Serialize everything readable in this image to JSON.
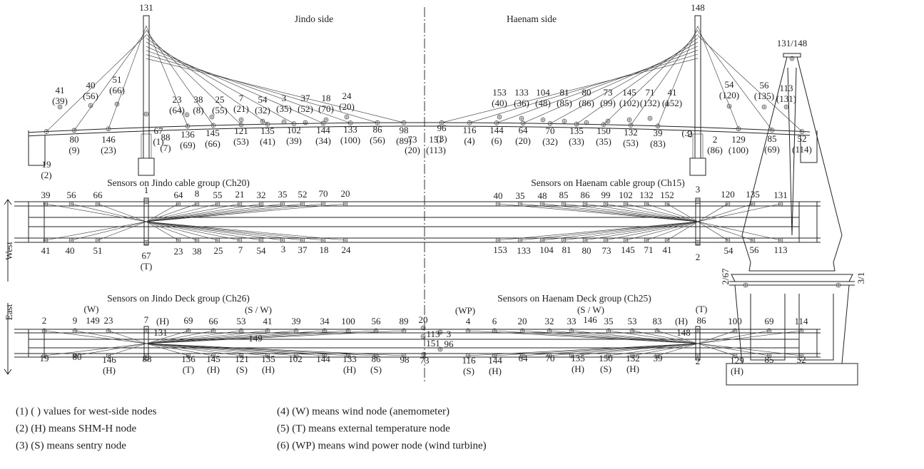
{
  "elevation": {
    "pylons": [
      "131",
      "148"
    ],
    "sides": [
      "Jindo side",
      "Haenam side"
    ],
    "labels": [
      [
        "41",
        "(39)"
      ],
      [
        "40",
        "(56)"
      ],
      [
        "51",
        "(66)"
      ],
      [
        "23",
        "(64)"
      ],
      [
        "38",
        "(8)"
      ],
      [
        "25",
        "(55)"
      ],
      [
        "7",
        "(21)"
      ],
      [
        "54",
        "(32)"
      ],
      [
        "3",
        "(35)"
      ],
      [
        "37",
        "(52)"
      ],
      [
        "18",
        "(70)"
      ],
      [
        "24",
        "(20)"
      ],
      [
        "67",
        "(1)"
      ],
      [
        "73",
        "(20)"
      ],
      [
        "151",
        "(113)"
      ],
      [
        "153",
        "(40)"
      ],
      [
        "133",
        "(36)"
      ],
      [
        "104",
        "(48)"
      ],
      [
        "81",
        "(85)"
      ],
      [
        "80",
        "(86)"
      ],
      [
        "73",
        "(99)"
      ],
      [
        "145",
        "(102)"
      ],
      [
        "71",
        "(132)"
      ],
      [
        "41",
        "(152)"
      ],
      [
        "2"
      ],
      [
        "54",
        "(120)"
      ],
      [
        "56",
        "(135)"
      ],
      [
        "113",
        "(131)"
      ],
      [
        "19",
        "(2)"
      ],
      [
        "80",
        "(9)"
      ],
      [
        "146",
        "(23)"
      ],
      [
        "88",
        "(7)"
      ],
      [
        "136",
        "(69)"
      ],
      [
        "145",
        "(66)"
      ],
      [
        "121",
        "(53)"
      ],
      [
        "135",
        "(41)"
      ],
      [
        "102",
        "(39)"
      ],
      [
        "144",
        "(34)"
      ],
      [
        "133",
        "(100)"
      ],
      [
        "86",
        "(56)"
      ],
      [
        "98",
        "(89)"
      ],
      [
        "96",
        "(3)"
      ],
      [
        "116",
        "(4)"
      ],
      [
        "144",
        "(6)"
      ],
      [
        "64",
        "(20)"
      ],
      [
        "70",
        "(32)"
      ],
      [
        "135",
        "(33)"
      ],
      [
        "150",
        "(35)"
      ],
      [
        "132",
        "(53)"
      ],
      [
        "39",
        "(83)"
      ],
      [
        "(3)"
      ],
      [
        "2",
        "(86)"
      ],
      [
        "129",
        "(100)"
      ],
      [
        "85",
        "(69)"
      ],
      [
        "52",
        "(114)"
      ]
    ]
  },
  "cable_plan": {
    "titles": [
      "Sensors on Jindo cable group (Ch20)",
      "Sensors on Haenam cable group (Ch15)"
    ],
    "labels": [
      [
        "39"
      ],
      [
        "56"
      ],
      [
        "66"
      ],
      [
        "1"
      ],
      [
        "64"
      ],
      [
        "8"
      ],
      [
        "55"
      ],
      [
        "21"
      ],
      [
        "32"
      ],
      [
        "35"
      ],
      [
        "52"
      ],
      [
        "70"
      ],
      [
        "20"
      ],
      [
        "40"
      ],
      [
        "35"
      ],
      [
        "48"
      ],
      [
        "85"
      ],
      [
        "86"
      ],
      [
        "99"
      ],
      [
        "102"
      ],
      [
        "132"
      ],
      [
        "152"
      ],
      [
        "3"
      ],
      [
        "120"
      ],
      [
        "135"
      ],
      [
        "131"
      ],
      [
        "41"
      ],
      [
        "40"
      ],
      [
        "51"
      ],
      [
        "67",
        "(T)"
      ],
      [
        "23"
      ],
      [
        "38"
      ],
      [
        "25"
      ],
      [
        "7"
      ],
      [
        "54"
      ],
      [
        "3"
      ],
      [
        "37"
      ],
      [
        "18"
      ],
      [
        "24"
      ],
      [
        "153"
      ],
      [
        "133"
      ],
      [
        "104"
      ],
      [
        "81"
      ],
      [
        "80"
      ],
      [
        "73"
      ],
      [
        "145"
      ],
      [
        "71"
      ],
      [
        "41"
      ],
      [
        "2"
      ],
      [
        "54"
      ],
      [
        "56"
      ],
      [
        "113"
      ]
    ]
  },
  "deck_plan": {
    "titles": [
      "Sensors on Jindo Deck group (Ch26)",
      "Sensors on Haenam Deck group (Ch25)"
    ],
    "labels": [
      [
        "(W)"
      ],
      [
        "2"
      ],
      [
        "9"
      ],
      [
        "149"
      ],
      [
        "23"
      ],
      [
        "7"
      ],
      [
        "(H)"
      ],
      [
        "131"
      ],
      [
        "69"
      ],
      [
        "66"
      ],
      [
        "53"
      ],
      [
        "(S / W)"
      ],
      [
        "41"
      ],
      [
        "39"
      ],
      [
        "34"
      ],
      [
        "100"
      ],
      [
        "56"
      ],
      [
        "89"
      ],
      [
        "20"
      ],
      [
        "113"
      ],
      [
        "3"
      ],
      [
        "151"
      ],
      [
        "96"
      ],
      [
        "149"
      ],
      [
        "(WP)"
      ],
      [
        "4"
      ],
      [
        "6"
      ],
      [
        "20"
      ],
      [
        "32"
      ],
      [
        "33"
      ],
      [
        "146"
      ],
      [
        "(S / W)"
      ],
      [
        "35"
      ],
      [
        "53"
      ],
      [
        "83"
      ],
      [
        "(H)"
      ],
      [
        "(T)"
      ],
      [
        "86"
      ],
      [
        "148"
      ],
      [
        "100"
      ],
      [
        "69"
      ],
      [
        "114"
      ],
      [
        "19"
      ],
      [
        "80"
      ],
      [
        "146",
        "(H)"
      ],
      [
        "88"
      ],
      [
        "136",
        "(T)"
      ],
      [
        "145",
        "(H)"
      ],
      [
        "121",
        "(S)"
      ],
      [
        "135",
        "(H)"
      ],
      [
        "102"
      ],
      [
        "144"
      ],
      [
        "133",
        "(H)"
      ],
      [
        "86",
        "(S)"
      ],
      [
        "98"
      ],
      [
        "73"
      ],
      [
        "116",
        "(S)"
      ],
      [
        "144",
        "(H)"
      ],
      [
        "64"
      ],
      [
        "70"
      ],
      [
        "135",
        "(H)"
      ],
      [
        "150",
        "(S)"
      ],
      [
        "132",
        "(H)"
      ],
      [
        "39"
      ],
      [
        "2"
      ],
      [
        "129",
        "(H)"
      ],
      [
        "85"
      ],
      [
        "52"
      ]
    ]
  },
  "directions": [
    "West",
    "East"
  ],
  "section": {
    "top": "131/148",
    "left": "2/67",
    "right": "3/1"
  },
  "legend": [
    "(1) ( ) values for west-side nodes",
    "(2) (H) means SHM-H node",
    "(3) (S) means sentry node",
    "(4) (W) means wind node (anemometer)",
    "(5) (T) means external temperature node",
    "(6) (WP) means wind power node (wind turbine)"
  ]
}
